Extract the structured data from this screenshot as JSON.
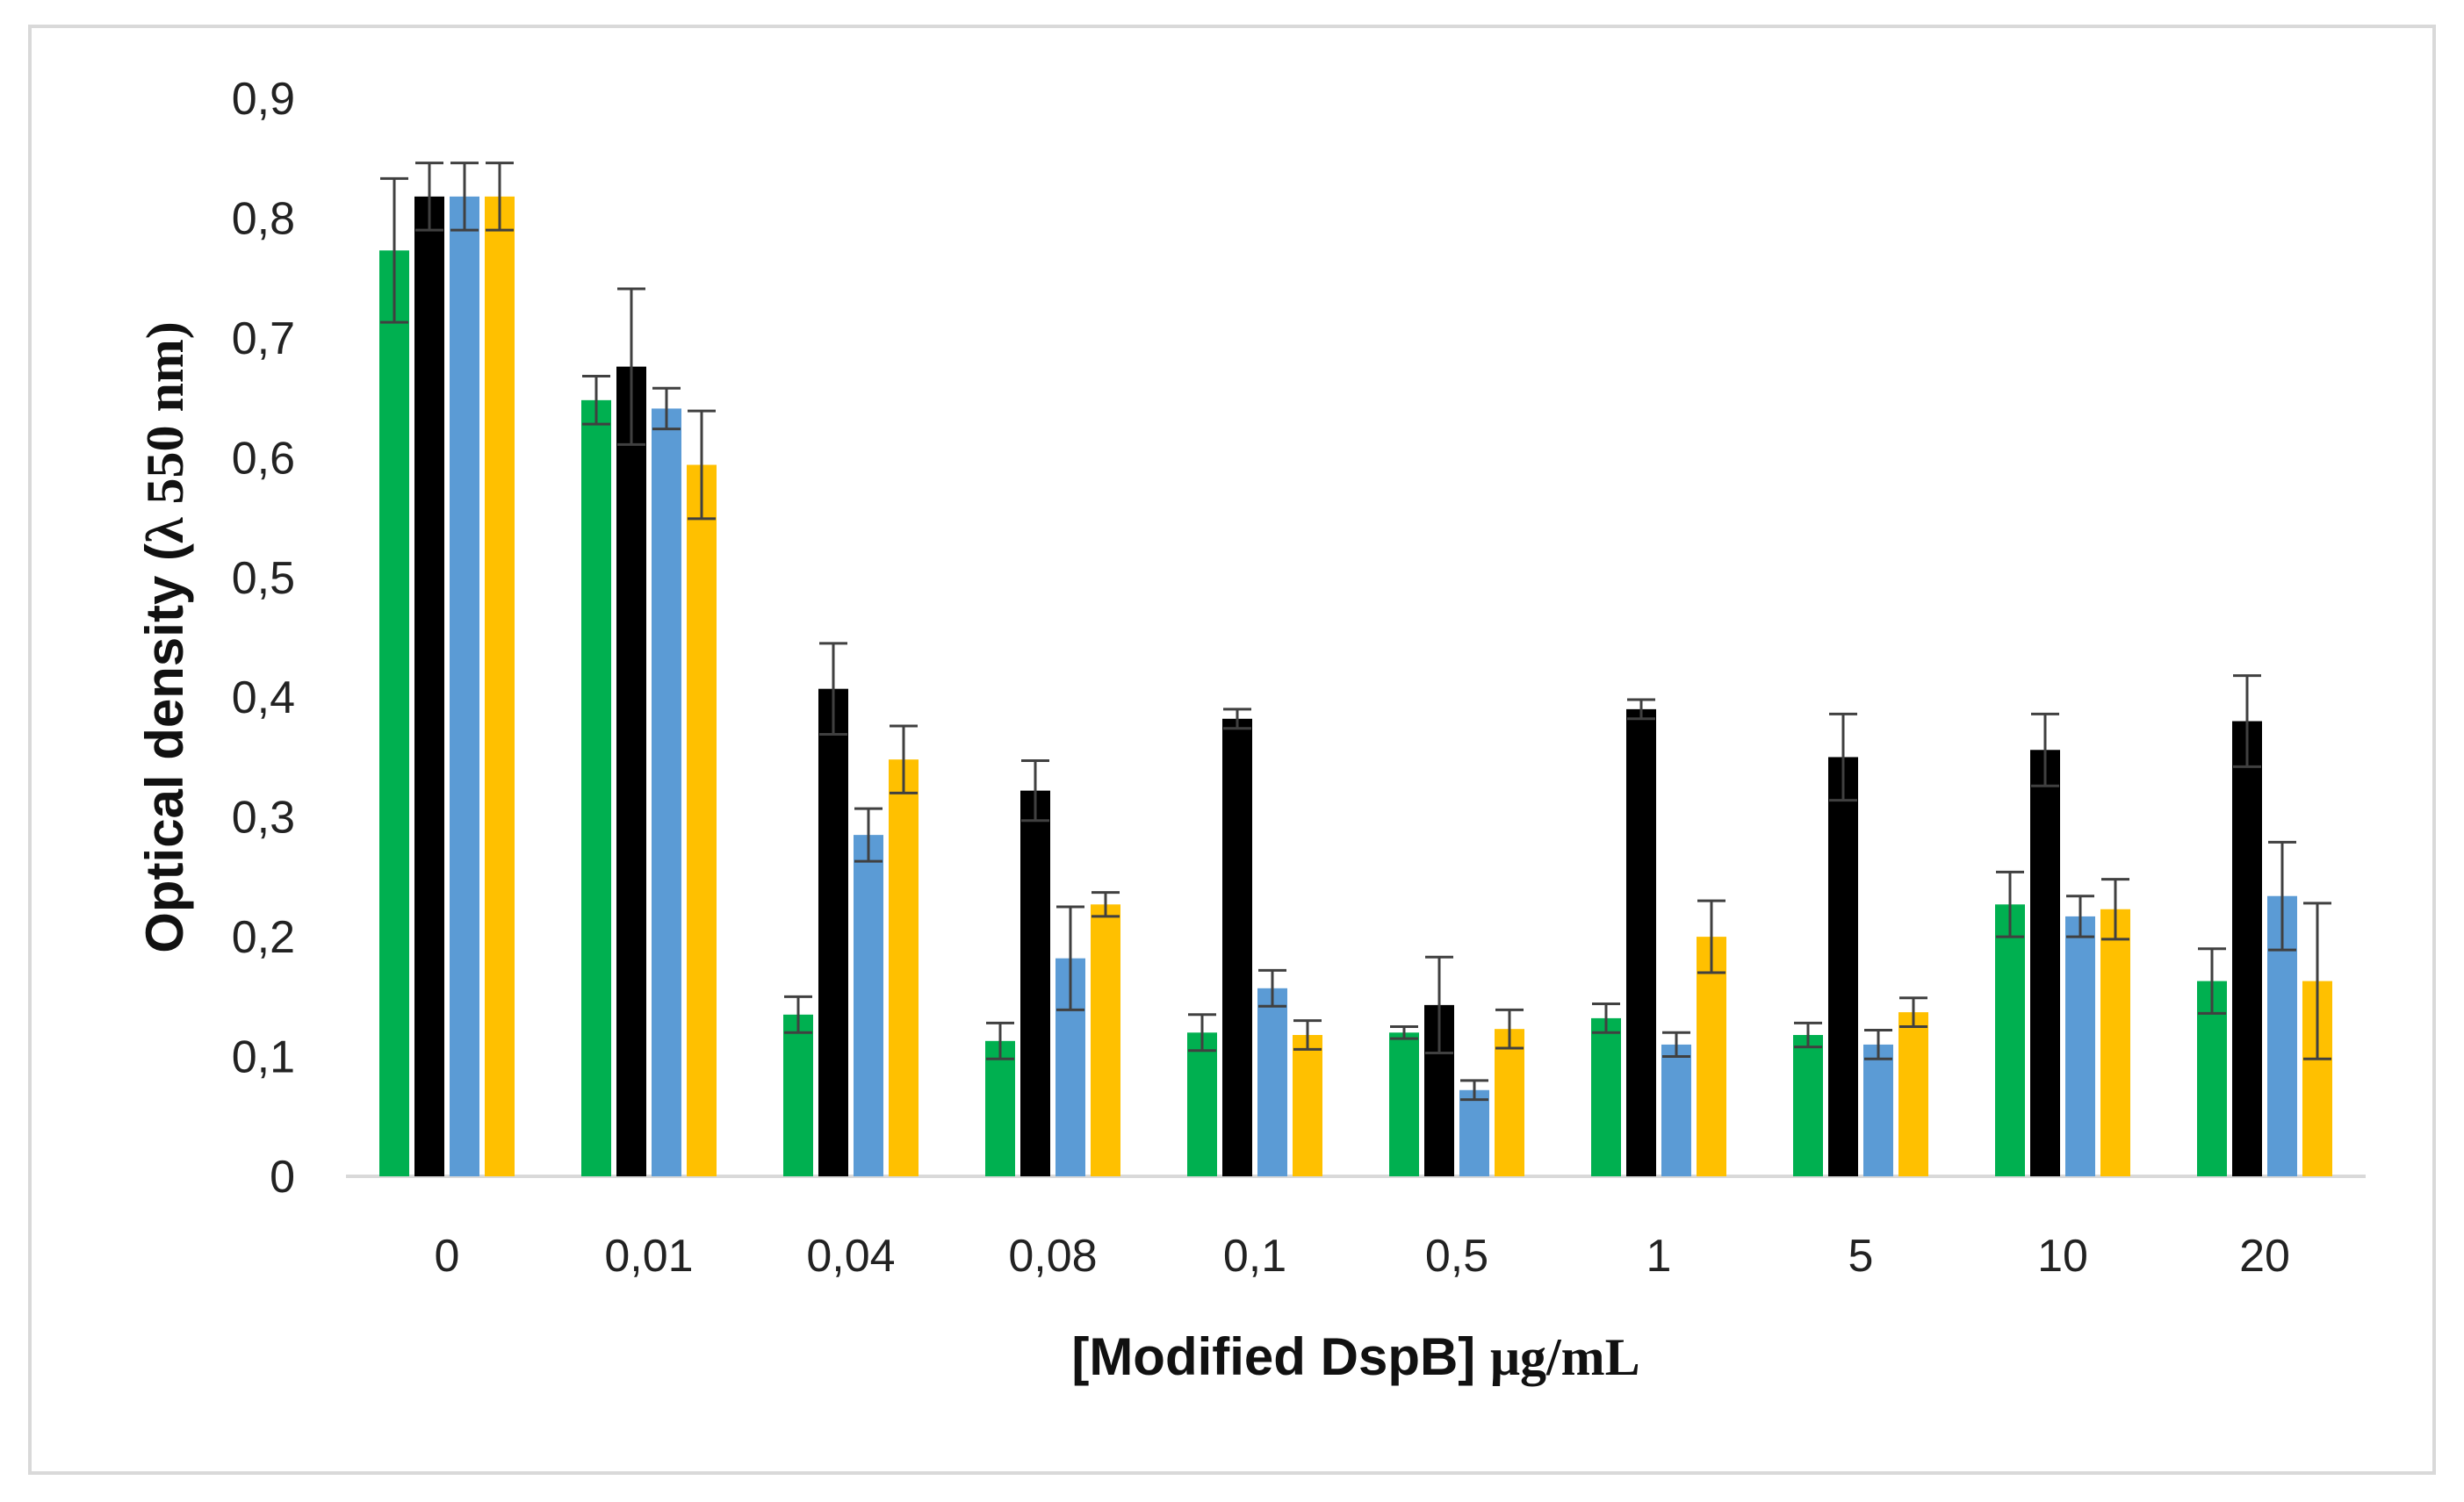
{
  "chart_data": {
    "type": "bar",
    "title": "",
    "xlabel_prefix": "[Modified DspB] ",
    "xlabel_unit": "μg/mL",
    "ylabel_prefix": "Optical density (",
    "ylabel_unit": "λ 550 nm)",
    "ylim": [
      0,
      0.9
    ],
    "yticks": [
      "0",
      "0,1",
      "0,2",
      "0,3",
      "0,4",
      "0,5",
      "0,6",
      "0,7",
      "0,8",
      "0,9"
    ],
    "categories": [
      "0",
      "0,01",
      "0,04",
      "0,08",
      "0,1",
      "0,5",
      "1",
      "5",
      "10",
      "20"
    ],
    "grid": false,
    "legend": "none",
    "series": [
      {
        "color": "#00b050",
        "values": [
          0.773,
          0.648,
          0.135,
          0.113,
          0.12,
          0.12,
          0.132,
          0.118,
          0.227,
          0.163
        ],
        "errors": [
          0.06,
          0.02,
          0.015,
          0.015,
          0.015,
          0.005,
          0.012,
          0.01,
          0.027,
          0.027
        ]
      },
      {
        "color": "#000000",
        "values": [
          0.818,
          0.676,
          0.407,
          0.322,
          0.382,
          0.143,
          0.39,
          0.35,
          0.356,
          0.38
        ],
        "errors": [
          0.028,
          0.065,
          0.038,
          0.025,
          0.008,
          0.04,
          0.008,
          0.036,
          0.03,
          0.038
        ]
      },
      {
        "color": "#5b9bd5",
        "values": [
          0.818,
          0.641,
          0.285,
          0.182,
          0.157,
          0.072,
          0.11,
          0.11,
          0.217,
          0.234
        ],
        "errors": [
          0.028,
          0.017,
          0.022,
          0.043,
          0.015,
          0.008,
          0.01,
          0.012,
          0.017,
          0.045
        ]
      },
      {
        "color": "#ffc000",
        "values": [
          0.818,
          0.594,
          0.348,
          0.227,
          0.118,
          0.123,
          0.2,
          0.137,
          0.223,
          0.163
        ],
        "errors": [
          0.028,
          0.045,
          0.028,
          0.01,
          0.012,
          0.016,
          0.03,
          0.012,
          0.025,
          0.065
        ]
      }
    ]
  }
}
